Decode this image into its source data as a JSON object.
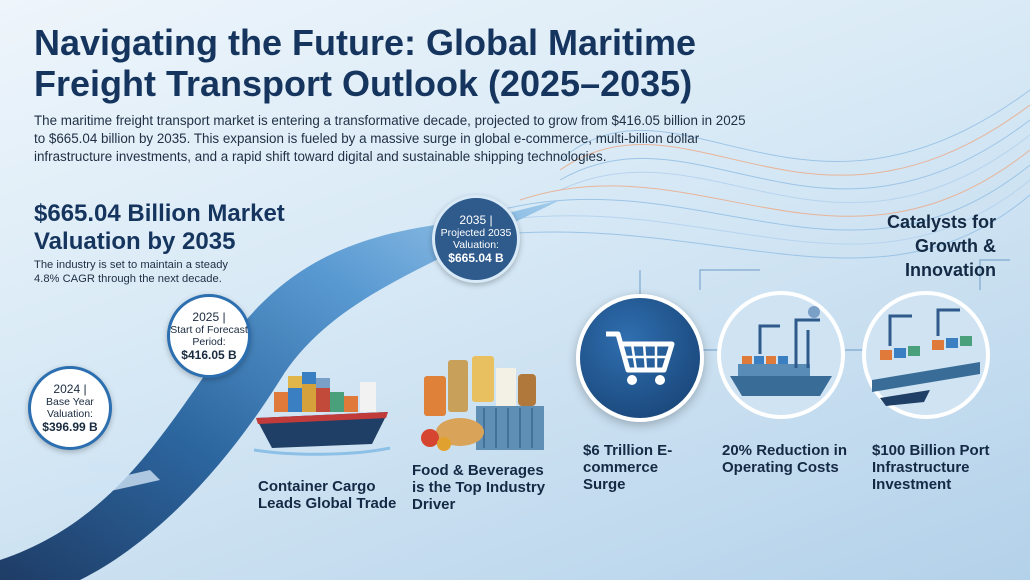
{
  "title": "Navigating the Future: Global Maritime Freight Transport Outlook (2025–2035)",
  "intro": "The maritime freight transport market is entering a transformative decade, projected to grow from $416.05 billion in 2025 to $665.04 billion by 2035. This expansion is fueled by a massive surge in global e-commerce, multi-billion dollar infrastructure investments, and a rapid shift toward digital and sustainable shipping technologies.",
  "headline": {
    "value": "$665.04 Billion Market Valuation by 2035",
    "subtext": "The industry is set to maintain a steady 4.8% CAGR through the next decade."
  },
  "timeline": [
    {
      "year": "2024 |",
      "label": "Base Year Valuation:",
      "value": "$396.99 B"
    },
    {
      "year": "2025 |",
      "label": "Start of Forecast Period:",
      "value": "$416.05 B"
    },
    {
      "year": "2035 |",
      "label": "Projected 2035 Valuation:",
      "value": "$665.04 B"
    }
  ],
  "segments": [
    {
      "label": "Container Cargo Leads Global Trade",
      "icon": "container-ship-icon"
    },
    {
      "label": "Food & Beverages is the Top Industry Driver",
      "icon": "food-beverages-icon"
    }
  ],
  "catalysts": {
    "heading": "Catalysts for Growth & Innovation",
    "items": [
      {
        "label": "$6 Trillion E-commerce Surge",
        "icon": "shopping-cart-icon"
      },
      {
        "label": "20% Reduction in Operating Costs",
        "icon": "smart-port-icon"
      },
      {
        "label": "$100 Billion Port Infrastructure Investment",
        "icon": "port-infrastructure-icon"
      }
    ]
  },
  "colors": {
    "title": "#16355e",
    "accent": "#2c6fb0",
    "dark_marker": "#2e5a8c"
  }
}
